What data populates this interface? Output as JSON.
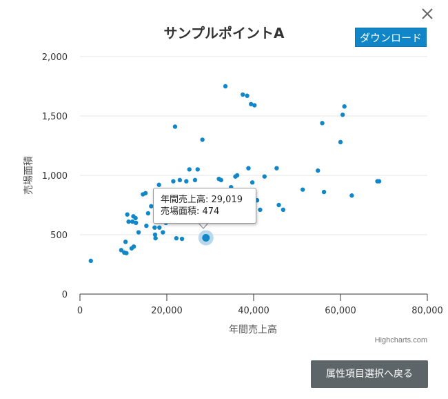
{
  "dialog": {
    "close_icon": "close-icon",
    "download_label": "ダウンロード",
    "back_label": "属性項目選択へ戻る",
    "credits": "Highcharts.com"
  },
  "colors": {
    "point": "#1287c8",
    "highlight_halo": "#b9d8ec",
    "download_bg": "#1085c8",
    "back_bg": "#5e6568",
    "grid": "#e6e6e6"
  },
  "tooltip": {
    "line1": "年間売上高: 29,019",
    "line2": "売場面積: 474"
  },
  "chart_data": {
    "type": "scatter",
    "title": "サンプルポイントA",
    "xlabel": "年間売上高",
    "ylabel": "売場面積",
    "xlim": [
      0,
      80000
    ],
    "ylim": [
      0,
      2000
    ],
    "x_ticks": [
      "0",
      "20,000",
      "40,000",
      "60,000",
      "80,000"
    ],
    "y_ticks": [
      "0",
      "500",
      "1,000",
      "1,500",
      "2,000"
    ],
    "grid": "horizontal",
    "highlighted_point": {
      "x": 29019,
      "y": 474
    },
    "points": [
      [
        2500,
        280
      ],
      [
        9500,
        370
      ],
      [
        10200,
        350
      ],
      [
        10700,
        345
      ],
      [
        10500,
        440
      ],
      [
        10900,
        670
      ],
      [
        11200,
        610
      ],
      [
        11900,
        385
      ],
      [
        12100,
        610
      ],
      [
        12400,
        400
      ],
      [
        12300,
        655
      ],
      [
        12800,
        640
      ],
      [
        12900,
        600
      ],
      [
        13500,
        520
      ],
      [
        14500,
        840
      ],
      [
        15100,
        850
      ],
      [
        15300,
        575
      ],
      [
        15700,
        680
      ],
      [
        16400,
        740
      ],
      [
        17200,
        560
      ],
      [
        17400,
        470
      ],
      [
        17300,
        500
      ],
      [
        18200,
        920
      ],
      [
        18300,
        560
      ],
      [
        19100,
        520
      ],
      [
        19800,
        600
      ],
      [
        20200,
        710
      ],
      [
        20800,
        690
      ],
      [
        21500,
        950
      ],
      [
        21900,
        1410
      ],
      [
        22200,
        470
      ],
      [
        23000,
        960
      ],
      [
        23500,
        465
      ],
      [
        24000,
        820
      ],
      [
        24500,
        950
      ],
      [
        25200,
        1050
      ],
      [
        25800,
        800
      ],
      [
        26500,
        960
      ],
      [
        27100,
        1050
      ],
      [
        28300,
        700
      ],
      [
        28200,
        1300
      ],
      [
        29019,
        474
      ],
      [
        30000,
        720
      ],
      [
        31000,
        840
      ],
      [
        32000,
        970
      ],
      [
        32500,
        960
      ],
      [
        33500,
        1750
      ],
      [
        34800,
        900
      ],
      [
        35800,
        990
      ],
      [
        36200,
        1000
      ],
      [
        37000,
        830
      ],
      [
        37500,
        1680
      ],
      [
        38500,
        1670
      ],
      [
        38800,
        1060
      ],
      [
        39400,
        1600
      ],
      [
        40200,
        1590
      ],
      [
        39700,
        940
      ],
      [
        40800,
        790
      ],
      [
        41500,
        710
      ],
      [
        42500,
        990
      ],
      [
        45300,
        1060
      ],
      [
        45800,
        750
      ],
      [
        46800,
        710
      ],
      [
        51300,
        880
      ],
      [
        54800,
        1040
      ],
      [
        55800,
        1440
      ],
      [
        56200,
        860
      ],
      [
        60000,
        1280
      ],
      [
        60500,
        1510
      ],
      [
        60900,
        1580
      ],
      [
        62600,
        830
      ],
      [
        68500,
        950
      ],
      [
        68900,
        950
      ]
    ]
  }
}
